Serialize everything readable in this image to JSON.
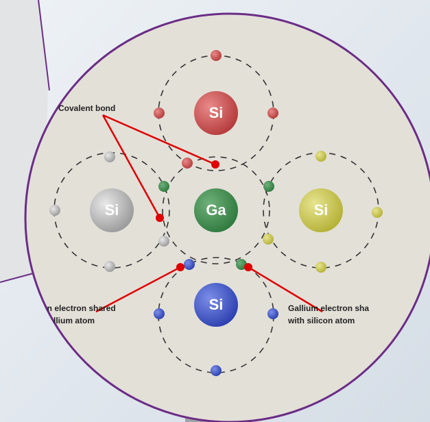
{
  "diagram": {
    "labels": {
      "covalent_bond": "Covalent bond",
      "left_caption": [
        "licon electron shared",
        "gallium atom"
      ],
      "right_caption": [
        "Gallium electron sha",
        "with silicon atom"
      ]
    },
    "atoms": {
      "top": "Si",
      "left": "Si",
      "center": "Ga",
      "right": "Si",
      "bottom": "Si"
    }
  }
}
